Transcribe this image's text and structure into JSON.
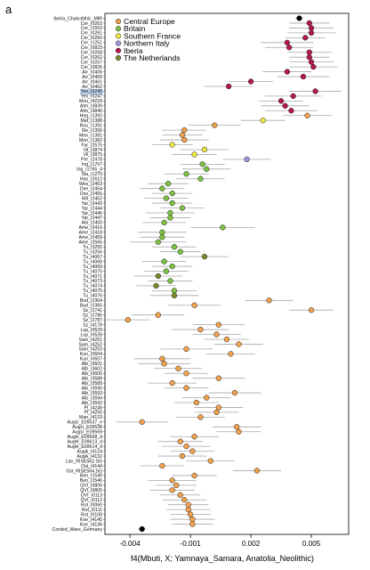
{
  "panel_label": "a",
  "chart_data": {
    "type": "scatter",
    "xlabel": "f4(Mbuti, X; Yamnaya_Samara, Anatolia_Neolithic)",
    "xlim": [
      -0.00524,
      0.00685
    ],
    "xticks": [
      -0.004,
      -0.001,
      0.002,
      0.005
    ],
    "xtick_labels": [
      "-0.004",
      "-0.001",
      "0.002",
      "0.005"
    ],
    "grid": false,
    "legend_position": "top-left",
    "legend": [
      {
        "label": "Central Europe",
        "color": "#F2A24E"
      },
      {
        "label": "Britain",
        "color": "#7CC242"
      },
      {
        "label": "Southern France",
        "color": "#EDE845"
      },
      {
        "label": "Northern Italy",
        "color": "#A592DD"
      },
      {
        "label": "Iberia",
        "color": "#B5174F"
      },
      {
        "label": "The Netherlands",
        "color": "#7A8C2E"
      }
    ],
    "reference_color": "#000000",
    "errorbar_color": "#A8A8A8",
    "selection_color": "#BCD4EF",
    "rows": [
      {
        "label": "Iberia_Chalcolithic_MIR",
        "value": 0.0044,
        "err": 0.0002,
        "group": -1
      },
      {
        "label": "Cer_I0263",
        "value": 0.0049,
        "err": 0.001,
        "group": 4
      },
      {
        "label": "Cer_I1553",
        "value": 0.005,
        "err": 0.0011,
        "group": 4
      },
      {
        "label": "Cer_I0261",
        "value": 0.005,
        "err": 0.0012,
        "group": 4
      },
      {
        "label": "Cer_I0260",
        "value": 0.0047,
        "err": 0.001,
        "group": 4
      },
      {
        "label": "Cer_I1251",
        "value": 0.0038,
        "err": 0.0013,
        "group": 4
      },
      {
        "label": "Cer_I0823",
        "value": 0.0039,
        "err": 0.0012,
        "group": 4
      },
      {
        "label": "Cer_I0258",
        "value": 0.0049,
        "err": 0.0011,
        "group": 4
      },
      {
        "label": "Cer_I0262",
        "value": 0.0049,
        "err": 0.001,
        "group": 4
      },
      {
        "label": "Cer_I0257",
        "value": 0.005,
        "err": 0.0011,
        "group": 4
      },
      {
        "label": "Cer_I0826",
        "value": 0.0051,
        "err": 0.0012,
        "group": 4
      },
      {
        "label": "Arr_I0406",
        "value": 0.0038,
        "err": 0.0012,
        "group": 4
      },
      {
        "label": "Arr_I0459",
        "value": 0.0046,
        "err": 0.0013,
        "group": 4
      },
      {
        "label": "Arr_I0461",
        "value": 0.002,
        "err": 0.0011,
        "group": 4
      },
      {
        "label": "Arr_I0462",
        "value": 0.0009,
        "err": 0.0012,
        "group": 4
      },
      {
        "label": "Yes_I0245",
        "value": 0.0052,
        "err": 0.0013,
        "group": 4,
        "selected": true
      },
      {
        "label": "Yes_I0247",
        "value": 0.0041,
        "err": 0.0014,
        "group": 4
      },
      {
        "label": "Mou_I4229",
        "value": 0.0035,
        "err": 0.0011,
        "group": 4
      },
      {
        "label": "Atm_I3839",
        "value": 0.0037,
        "err": 0.0012,
        "group": 4
      },
      {
        "label": "Atm_I3840",
        "value": 0.004,
        "err": 0.0013,
        "group": 4
      },
      {
        "label": "Heg_I1392",
        "value": 0.0048,
        "err": 0.0012,
        "group": 0
      },
      {
        "label": "Maf_I1388",
        "value": 0.0026,
        "err": 0.0011,
        "group": 2
      },
      {
        "label": "Rou_I1391",
        "value": 0.0002,
        "err": 0.0013,
        "group": 0
      },
      {
        "label": "Sle_I1390",
        "value": -0.0013,
        "err": 0.0011,
        "group": 0
      },
      {
        "label": "Mon_I1381",
        "value": -0.0014,
        "err": 0.001,
        "group": 0
      },
      {
        "label": "Mon_I1382",
        "value": -0.0013,
        "err": 0.0012,
        "group": 0
      },
      {
        "label": "Far_I2575",
        "value": -0.0019,
        "err": 0.001,
        "group": 2
      },
      {
        "label": "Vil_I3874",
        "value": -0.0003,
        "err": 0.0012,
        "group": 2
      },
      {
        "label": "Vil_I3875",
        "value": -0.0008,
        "err": 0.0011,
        "group": 2
      },
      {
        "label": "Per_I2478",
        "value": 0.0018,
        "err": 0.0012,
        "group": 3
      },
      {
        "label": "Ing_I1767",
        "value": -0.0004,
        "err": 0.0011,
        "group": 1
      },
      {
        "label": "Ing_I1765_d",
        "value": -0.0002,
        "err": 0.0012,
        "group": 1
      },
      {
        "label": "Sta_I1270",
        "value": -0.0012,
        "err": 0.0011,
        "group": 1
      },
      {
        "label": "Has_I2612",
        "value": -0.0005,
        "err": 0.0012,
        "group": 1
      },
      {
        "label": "Wes_I2453",
        "value": -0.0021,
        "err": 0.001,
        "group": 1
      },
      {
        "label": "Ove_I2454",
        "value": -0.0024,
        "err": 0.0011,
        "group": 1
      },
      {
        "label": "Ove_I2455",
        "value": -0.0019,
        "err": 0.001,
        "group": 1
      },
      {
        "label": "Wil_I2452",
        "value": -0.0022,
        "err": 0.0011,
        "group": 1
      },
      {
        "label": "Yar_I2443",
        "value": -0.0019,
        "err": 0.001,
        "group": 1
      },
      {
        "label": "Yar_I2444",
        "value": -0.0014,
        "err": 0.0011,
        "group": 1
      },
      {
        "label": "Yar_I2446",
        "value": -0.002,
        "err": 0.0012,
        "group": 1
      },
      {
        "label": "Yar_I2447",
        "value": -0.002,
        "err": 0.001,
        "group": 1
      },
      {
        "label": "Abi_I2450",
        "value": -0.0023,
        "err": 0.0011,
        "group": 1
      },
      {
        "label": "Ame_I2416",
        "value": 0.0006,
        "err": 0.0016,
        "group": 1
      },
      {
        "label": "Ame_I2418",
        "value": -0.0024,
        "err": 0.0012,
        "group": 1
      },
      {
        "label": "Ame_I2459",
        "value": -0.0024,
        "err": 0.0011,
        "group": 1
      },
      {
        "label": "Ame_I2565",
        "value": -0.0026,
        "err": 0.0014,
        "group": 1
      },
      {
        "label": "Tu_I3255",
        "value": -0.0018,
        "err": 0.0011,
        "group": 1
      },
      {
        "label": "Tu_I3256",
        "value": -0.0015,
        "err": 0.001,
        "group": 1
      },
      {
        "label": "Tu_I4067",
        "value": -0.0003,
        "err": 0.0012,
        "group": 5
      },
      {
        "label": "Tu_I4068",
        "value": -0.0023,
        "err": 0.0011,
        "group": 1
      },
      {
        "label": "Tu_I4069",
        "value": -0.0019,
        "err": 0.001,
        "group": 1
      },
      {
        "label": "Tu_I4070",
        "value": -0.0022,
        "err": 0.0011,
        "group": 1
      },
      {
        "label": "Tu_I4071",
        "value": -0.0026,
        "err": 0.0012,
        "group": 5
      },
      {
        "label": "Tu_I4073",
        "value": -0.002,
        "err": 0.0011,
        "group": 1
      },
      {
        "label": "Tu_I4074",
        "value": -0.0027,
        "err": 0.001,
        "group": 5
      },
      {
        "label": "Tu_I4075",
        "value": -0.0018,
        "err": 0.0011,
        "group": 1
      },
      {
        "label": "Tu_I4076",
        "value": -0.0018,
        "err": 0.0012,
        "group": 5
      },
      {
        "label": "Bud_I2364",
        "value": 0.0029,
        "err": 0.0012,
        "group": 0
      },
      {
        "label": "Bud_I2365",
        "value": -0.0008,
        "err": 0.0013,
        "group": 0
      },
      {
        "label": "Sz_I2741",
        "value": 0.005,
        "err": 0.0011,
        "group": 0
      },
      {
        "label": "Sz_I2786",
        "value": -0.0026,
        "err": 0.0013,
        "group": 0
      },
      {
        "label": "Sz_I2787",
        "value": -0.0041,
        "err": 0.0011,
        "group": 0
      },
      {
        "label": "Sz_I4178",
        "value": 0.0004,
        "err": 0.0013,
        "group": 0
      },
      {
        "label": "Lup_I0529",
        "value": -0.0005,
        "err": 0.0014,
        "group": 0
      },
      {
        "label": "Lup_I0528",
        "value": 0.0003,
        "err": 0.0012,
        "group": 0
      },
      {
        "label": "Sam_I4251",
        "value": 0.0008,
        "err": 0.0011,
        "group": 0
      },
      {
        "label": "Sam_I4252",
        "value": 0.0014,
        "err": 0.0012,
        "group": 0
      },
      {
        "label": "Sam_I4253",
        "value": -0.0012,
        "err": 0.0013,
        "group": 0
      },
      {
        "label": "Kun_I0604",
        "value": 0.001,
        "err": 0.0012,
        "group": 0
      },
      {
        "label": "Kun_I0607",
        "value": -0.0024,
        "err": 0.0014,
        "group": 0
      },
      {
        "label": "Alb_I3601",
        "value": -0.0023,
        "err": 0.0013,
        "group": 0
      },
      {
        "label": "Alb_I3602",
        "value": -0.0016,
        "err": 0.0012,
        "group": 0
      },
      {
        "label": "Alb_I0600",
        "value": -0.0012,
        "err": 0.0011,
        "group": 0
      },
      {
        "label": "Alb_I3588",
        "value": 0.0004,
        "err": 0.0013,
        "group": 0
      },
      {
        "label": "Alb_I3589",
        "value": -0.0019,
        "err": 0.0012,
        "group": 0
      },
      {
        "label": "Alb_I3590",
        "value": -0.0012,
        "err": 0.0011,
        "group": 0
      },
      {
        "label": "Alb_I3593",
        "value": 0.0012,
        "err": 0.0013,
        "group": 0
      },
      {
        "label": "Alb_I3594",
        "value": -0.0002,
        "err": 0.0012,
        "group": 0
      },
      {
        "label": "Alb_I3592",
        "value": -0.0007,
        "err": 0.0011,
        "group": 0
      },
      {
        "label": "Pl_I4249",
        "value": 0.0004,
        "err": 0.0012,
        "group": 0
      },
      {
        "label": "Pl_I4250",
        "value": 0.0003,
        "err": 0.0011,
        "group": 0
      },
      {
        "label": "Man_I4123",
        "value": -0.0005,
        "err": 0.0012,
        "group": 0
      },
      {
        "label": "AugU_E09537_e",
        "value": -0.0034,
        "err": 0.0013,
        "group": 0
      },
      {
        "label": "AugU_E09538",
        "value": 0.0013,
        "err": 0.0012,
        "group": 0
      },
      {
        "label": "AugU_E09569",
        "value": 0.0014,
        "err": 0.0011,
        "group": 0
      },
      {
        "label": "AugH_E09568_d",
        "value": -0.0008,
        "err": 0.0012,
        "group": 0
      },
      {
        "label": "AugH_E09613_d",
        "value": -0.0015,
        "err": 0.0011,
        "group": 0
      },
      {
        "label": "AugH_E09614_d",
        "value": -0.0012,
        "err": 0.0012,
        "group": 0
      },
      {
        "label": "AugA_I4124",
        "value": -0.0009,
        "err": 0.0011,
        "group": 0
      },
      {
        "label": "AugA_I4132",
        "value": -0.0014,
        "err": 0.0012,
        "group": 0
      },
      {
        "label": "Lan_RISE562.SG",
        "value": 0.0,
        "err": 0.0012,
        "group": 0
      },
      {
        "label": "Ost_I4144",
        "value": -0.0024,
        "err": 0.0011,
        "group": 0
      },
      {
        "label": "Ost_RISE564.SG",
        "value": 0.0023,
        "err": 0.0012,
        "group": 0
      },
      {
        "label": "Ben_I1549",
        "value": -0.0008,
        "err": 0.0011,
        "group": 0
      },
      {
        "label": "Ben_I1546",
        "value": -0.0019,
        "err": 0.0012,
        "group": 0
      },
      {
        "label": "QVI_I0806",
        "value": -0.0017,
        "err": 0.001,
        "group": 0
      },
      {
        "label": "QVI_I0805",
        "value": -0.0019,
        "err": 0.0011,
        "group": 0
      },
      {
        "label": "QVI_I0113",
        "value": -0.0015,
        "err": 0.001,
        "group": 0
      },
      {
        "label": "QVI_I0112",
        "value": -0.0013,
        "err": 0.0011,
        "group": 0
      },
      {
        "label": "Rot_I0060",
        "value": -0.0011,
        "err": 0.001,
        "group": 0
      },
      {
        "label": "Rot_I0111",
        "value": -0.0011,
        "err": 0.0011,
        "group": 0
      },
      {
        "label": "Rot_I0108",
        "value": -0.001,
        "err": 0.001,
        "group": 0
      },
      {
        "label": "Kne_I4145",
        "value": -0.0009,
        "err": 0.0011,
        "group": 0
      },
      {
        "label": "Kne_I4136",
        "value": -0.0009,
        "err": 0.001,
        "group": 0
      },
      {
        "label": "Corded_Ware_Germany",
        "value": -0.0034,
        "err": 0.0002,
        "group": -1
      }
    ]
  }
}
